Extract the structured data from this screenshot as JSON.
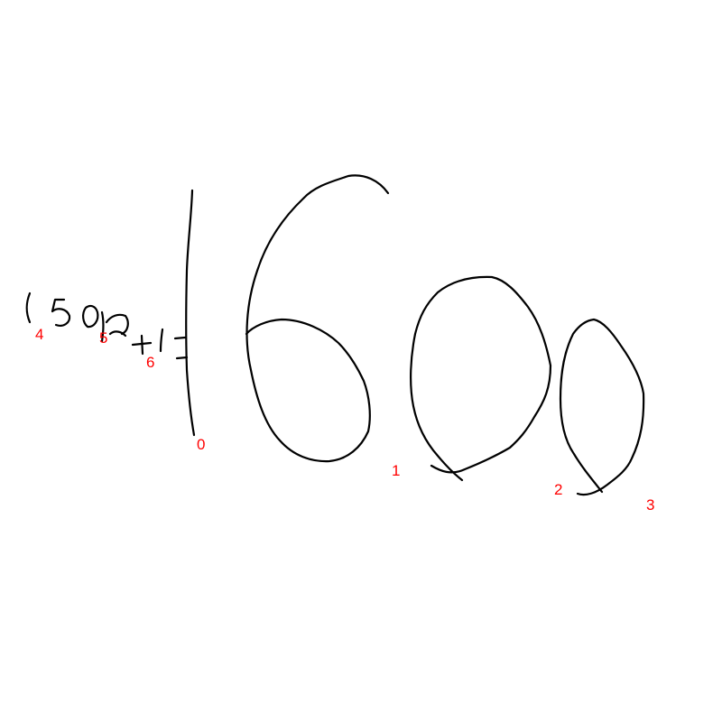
{
  "stroke_color": "#000000",
  "label_color": "#ff0000",
  "stroke_labels": [
    "0",
    "1",
    "2",
    "3",
    "4",
    "5",
    "6"
  ]
}
